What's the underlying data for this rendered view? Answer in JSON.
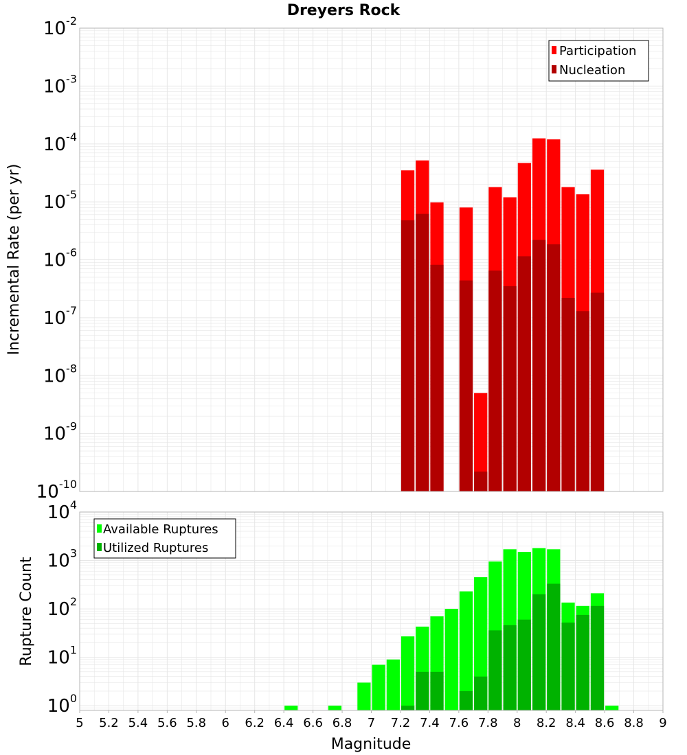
{
  "colors": {
    "participation": "#ff0000",
    "nucleation": "#b20000",
    "available": "#00ff00",
    "utilized": "#00b200",
    "grid": "#e6e6e6",
    "frame": "#b4b4b4"
  },
  "chart_data": [
    {
      "type": "bar",
      "title": "Dreyers Rock",
      "xlabel": "",
      "ylabel": "Incremental Rate (per yr)",
      "yscale": "log",
      "xlim": [
        5,
        9
      ],
      "ylim": [
        1e-10,
        0.01
      ],
      "y_ticks": [
        {
          "base": "10",
          "exp": "-10",
          "value": 1e-10
        },
        {
          "base": "10",
          "exp": "-9",
          "value": 1e-09
        },
        {
          "base": "10",
          "exp": "-8",
          "value": 1e-08
        },
        {
          "base": "10",
          "exp": "-7",
          "value": 1e-07
        },
        {
          "base": "10",
          "exp": "-6",
          "value": 1e-06
        },
        {
          "base": "10",
          "exp": "-5",
          "value": 1e-05
        },
        {
          "base": "10",
          "exp": "-4",
          "value": 0.0001
        },
        {
          "base": "10",
          "exp": "-3",
          "value": 0.001
        },
        {
          "base": "10",
          "exp": "-2",
          "value": 0.01
        }
      ],
      "legend": [
        "Participation",
        "Nucleation"
      ],
      "legend_position": "top-right",
      "bin_width": 0.1,
      "series": [
        {
          "name": "Participation",
          "x": [
            7.25,
            7.35,
            7.45,
            7.65,
            7.75,
            7.85,
            7.95,
            8.05,
            8.15,
            8.25,
            8.35,
            8.45,
            8.55
          ],
          "values": [
            3.5e-05,
            5.2e-05,
            9.8e-06,
            8e-06,
            5e-09,
            1.8e-05,
            1.2e-05,
            4.7e-05,
            0.000125,
            0.00012,
            1.8e-05,
            1.35e-05,
            3.6e-05
          ]
        },
        {
          "name": "Nucleation",
          "x": [
            7.25,
            7.35,
            7.45,
            7.65,
            7.75,
            7.85,
            7.95,
            8.05,
            8.15,
            8.25,
            8.35,
            8.45,
            8.55
          ],
          "values": [
            4.8e-06,
            6.2e-06,
            8.2e-07,
            4.4e-07,
            2.2e-10,
            6.5e-07,
            3.5e-07,
            1.15e-06,
            2.2e-06,
            1.85e-06,
            2.2e-07,
            1.3e-07,
            2.7e-07
          ]
        }
      ]
    },
    {
      "type": "bar",
      "title": "",
      "xlabel": "Magnitude",
      "ylabel": "Rupture Count",
      "yscale": "log",
      "xlim": [
        5,
        9
      ],
      "ylim": [
        0.8,
        10000
      ],
      "x_ticks": [
        "5",
        "5.2",
        "5.4",
        "5.6",
        "5.8",
        "6",
        "6.2",
        "6.4",
        "6.6",
        "6.8",
        "7",
        "7.2",
        "7.4",
        "7.6",
        "7.8",
        "8",
        "8.2",
        "8.4",
        "8.6",
        "8.8",
        "9"
      ],
      "y_ticks": [
        {
          "base": "10",
          "exp": "0",
          "value": 1
        },
        {
          "base": "10",
          "exp": "1",
          "value": 10
        },
        {
          "base": "10",
          "exp": "2",
          "value": 100
        },
        {
          "base": "10",
          "exp": "3",
          "value": 1000
        },
        {
          "base": "10",
          "exp": "4",
          "value": 10000
        }
      ],
      "legend": [
        "Available Ruptures",
        "Utilized Ruptures"
      ],
      "legend_position": "top-left",
      "bin_width": 0.1,
      "series": [
        {
          "name": "Available Ruptures",
          "x": [
            6.45,
            6.75,
            6.95,
            7.05,
            7.15,
            7.25,
            7.35,
            7.45,
            7.55,
            7.65,
            7.75,
            7.85,
            7.95,
            8.05,
            8.15,
            8.25,
            8.35,
            8.45,
            8.55,
            8.65
          ],
          "values": [
            1,
            1,
            3,
            7,
            9,
            27,
            43,
            70,
            100,
            230,
            450,
            950,
            1700,
            1500,
            1800,
            1700,
            135,
            115,
            210,
            1
          ]
        },
        {
          "name": "Utilized Ruptures",
          "x": [
            7.25,
            7.35,
            7.45,
            7.65,
            7.75,
            7.85,
            7.95,
            8.05,
            8.15,
            8.25,
            8.35,
            8.45,
            8.55
          ],
          "values": [
            1,
            5,
            5,
            2,
            4,
            36,
            46,
            60,
            200,
            330,
            52,
            75,
            115
          ]
        }
      ]
    }
  ]
}
